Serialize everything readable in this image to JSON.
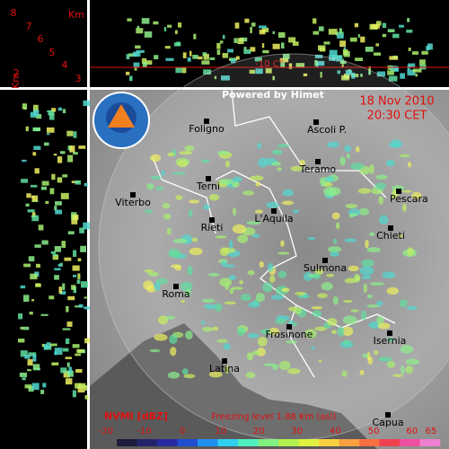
{
  "height_scale": {
    "unit": "Km",
    "ticks": [
      8,
      7,
      6,
      5,
      4,
      3
    ],
    "side_unit": "Km",
    "side_tick": 2
  },
  "freezing_marker": "-10 C°",
  "credit": "Powered by Himet",
  "timestamp": {
    "date": "18 Nov 2010",
    "time": "20:30 CET"
  },
  "cities": [
    "Foligno",
    "Ascoli P.",
    "Teramo",
    "Terni",
    "Pescara",
    "Viterbo",
    "Rieti",
    "L'Aquila",
    "Chieti",
    "Sulmona",
    "Roma",
    "Frosinone",
    "Isernia",
    "Latina",
    "Capua"
  ],
  "legend": {
    "product": "NVMI [dBZ]",
    "freezing_level": "Freezing level  1.88 Km (asl)",
    "ticks": [
      -20,
      -10,
      0,
      10,
      20,
      30,
      40,
      50,
      60,
      65
    ],
    "colors": [
      "#1c1c3c",
      "#24246c",
      "#2a2aa0",
      "#2050d0",
      "#2090f0",
      "#30d0f0",
      "#50f0c0",
      "#80f080",
      "#b0f050",
      "#e0f040",
      "#f8d040",
      "#f8a040",
      "#f87040",
      "#f04050",
      "#f050a0",
      "#f080d0"
    ]
  }
}
